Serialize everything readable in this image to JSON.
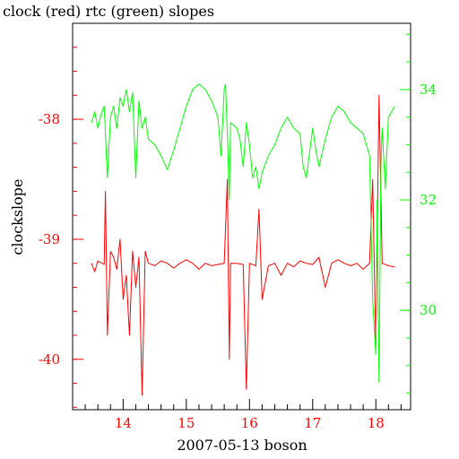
{
  "chart_data": {
    "type": "line",
    "title": "clock (red) rtc (green) slopes",
    "xlabel": "2007-05-13 boson",
    "ylabel": "clockslope",
    "xlim": [
      13.2,
      18.55
    ],
    "x_ticks": [
      "14",
      "15",
      "16",
      "17",
      "18"
    ],
    "y_left": {
      "lim": [
        -40.42,
        -37.2
      ],
      "ticks": [
        "-38",
        "-39",
        "-40"
      ],
      "color": "#ff0000"
    },
    "y_right": {
      "lim": [
        28.2,
        35.2
      ],
      "ticks": [
        "34",
        "32",
        "30"
      ],
      "color": "#00ff00"
    },
    "grid": false,
    "series": [
      {
        "name": "clock",
        "color": "#ff0000",
        "axis": "left",
        "points": [
          [
            13.5,
            -39.2
          ],
          [
            13.55,
            -39.27
          ],
          [
            13.6,
            -39.18
          ],
          [
            13.7,
            -39.21
          ],
          [
            13.72,
            -38.6
          ],
          [
            13.75,
            -39.8
          ],
          [
            13.8,
            -39.1
          ],
          [
            13.85,
            -39.15
          ],
          [
            13.9,
            -39.25
          ],
          [
            13.95,
            -39.0
          ],
          [
            14.0,
            -39.5
          ],
          [
            14.05,
            -39.3
          ],
          [
            14.1,
            -39.8
          ],
          [
            14.15,
            -39.1
          ],
          [
            14.2,
            -39.4
          ],
          [
            14.25,
            -39.15
          ],
          [
            14.3,
            -40.3
          ],
          [
            14.35,
            -39.1
          ],
          [
            14.4,
            -39.2
          ],
          [
            14.5,
            -39.22
          ],
          [
            14.6,
            -39.18
          ],
          [
            14.7,
            -39.2
          ],
          [
            14.8,
            -39.24
          ],
          [
            14.9,
            -39.2
          ],
          [
            15.0,
            -39.17
          ],
          [
            15.1,
            -39.2
          ],
          [
            15.2,
            -39.25
          ],
          [
            15.3,
            -39.2
          ],
          [
            15.4,
            -39.22
          ],
          [
            15.5,
            -39.21
          ],
          [
            15.6,
            -39.2
          ],
          [
            15.65,
            -38.5
          ],
          [
            15.68,
            -40.0
          ],
          [
            15.7,
            -39.2
          ],
          [
            15.8,
            -39.2
          ],
          [
            15.9,
            -39.21
          ],
          [
            15.95,
            -40.25
          ],
          [
            16.0,
            -39.2
          ],
          [
            16.1,
            -39.22
          ],
          [
            16.15,
            -38.75
          ],
          [
            16.2,
            -39.5
          ],
          [
            16.3,
            -39.22
          ],
          [
            16.4,
            -39.2
          ],
          [
            16.5,
            -39.3
          ],
          [
            16.6,
            -39.2
          ],
          [
            16.7,
            -39.23
          ],
          [
            16.8,
            -39.18
          ],
          [
            16.9,
            -39.2
          ],
          [
            17.0,
            -39.21
          ],
          [
            17.1,
            -39.15
          ],
          [
            17.2,
            -39.4
          ],
          [
            17.3,
            -39.2
          ],
          [
            17.4,
            -39.17
          ],
          [
            17.5,
            -39.2
          ],
          [
            17.6,
            -39.22
          ],
          [
            17.7,
            -39.2
          ],
          [
            17.8,
            -39.25
          ],
          [
            17.9,
            -39.2
          ],
          [
            17.95,
            -38.5
          ],
          [
            18.0,
            -39.9
          ],
          [
            18.05,
            -37.8
          ],
          [
            18.1,
            -39.2
          ],
          [
            18.2,
            -39.22
          ],
          [
            18.3,
            -39.23
          ]
        ]
      },
      {
        "name": "rtc",
        "color": "#00ff00",
        "axis": "right",
        "points": [
          [
            13.5,
            33.4
          ],
          [
            13.55,
            33.6
          ],
          [
            13.6,
            33.3
          ],
          [
            13.65,
            33.55
          ],
          [
            13.7,
            33.7
          ],
          [
            13.75,
            32.4
          ],
          [
            13.8,
            33.5
          ],
          [
            13.85,
            33.7
          ],
          [
            13.9,
            33.3
          ],
          [
            13.95,
            33.85
          ],
          [
            14.0,
            33.7
          ],
          [
            14.05,
            34.0
          ],
          [
            14.1,
            33.6
          ],
          [
            14.15,
            33.95
          ],
          [
            14.2,
            32.4
          ],
          [
            14.25,
            33.8
          ],
          [
            14.3,
            33.3
          ],
          [
            14.35,
            33.5
          ],
          [
            14.4,
            33.1
          ],
          [
            14.5,
            33.0
          ],
          [
            14.6,
            32.8
          ],
          [
            14.7,
            32.55
          ],
          [
            14.8,
            32.9
          ],
          [
            14.9,
            33.3
          ],
          [
            15.0,
            33.7
          ],
          [
            15.1,
            34.0
          ],
          [
            15.2,
            34.1
          ],
          [
            15.3,
            34.0
          ],
          [
            15.4,
            33.8
          ],
          [
            15.5,
            33.5
          ],
          [
            15.55,
            32.8
          ],
          [
            15.6,
            34.0
          ],
          [
            15.62,
            34.1
          ],
          [
            15.65,
            33.2
          ],
          [
            15.68,
            32.0
          ],
          [
            15.7,
            33.4
          ],
          [
            15.8,
            33.3
          ],
          [
            15.85,
            33.1
          ],
          [
            15.9,
            32.6
          ],
          [
            15.95,
            33.4
          ],
          [
            16.0,
            33.0
          ],
          [
            16.05,
            32.4
          ],
          [
            16.1,
            32.6
          ],
          [
            16.15,
            32.2
          ],
          [
            16.2,
            32.5
          ],
          [
            16.3,
            32.8
          ],
          [
            16.4,
            33.0
          ],
          [
            16.5,
            33.3
          ],
          [
            16.6,
            33.5
          ],
          [
            16.7,
            33.3
          ],
          [
            16.8,
            33.2
          ],
          [
            16.85,
            32.6
          ],
          [
            16.9,
            32.4
          ],
          [
            17.0,
            33.3
          ],
          [
            17.05,
            32.9
          ],
          [
            17.1,
            32.6
          ],
          [
            17.2,
            33.1
          ],
          [
            17.3,
            33.5
          ],
          [
            17.4,
            33.7
          ],
          [
            17.5,
            33.6
          ],
          [
            17.6,
            33.4
          ],
          [
            17.7,
            33.3
          ],
          [
            17.8,
            33.2
          ],
          [
            17.9,
            32.8
          ],
          [
            17.95,
            30.2
          ],
          [
            18.0,
            29.2
          ],
          [
            18.02,
            32.0
          ],
          [
            18.05,
            28.7
          ],
          [
            18.08,
            32.6
          ],
          [
            18.1,
            33.3
          ],
          [
            18.15,
            32.2
          ],
          [
            18.2,
            33.5
          ],
          [
            18.25,
            33.6
          ],
          [
            18.3,
            33.7
          ]
        ]
      }
    ]
  }
}
